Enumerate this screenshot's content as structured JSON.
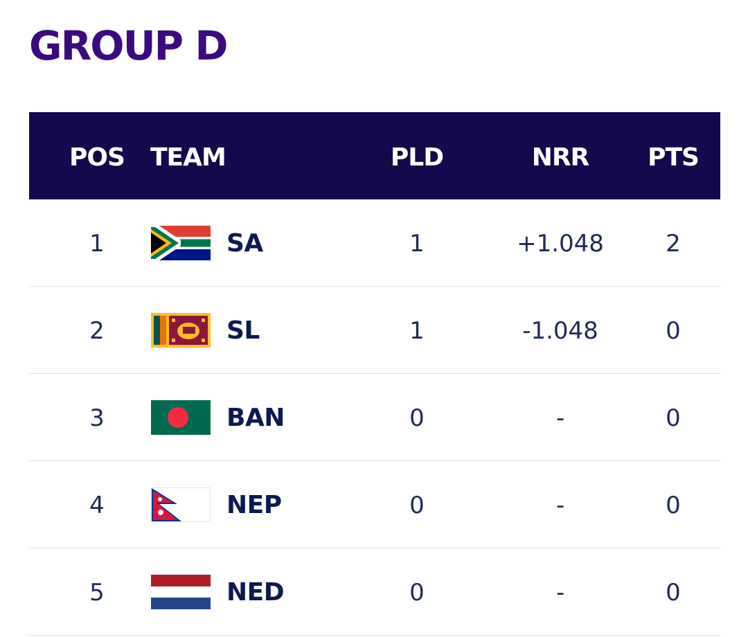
{
  "title": "GROUP D",
  "headers": {
    "pos": "POS",
    "team": "TEAM",
    "pld": "PLD",
    "nrr": "NRR",
    "pts": "PTS"
  },
  "colors": {
    "title": "#3b0a7e",
    "header_bg": "#120a4c",
    "team_text": "#0c1a52"
  },
  "rows": [
    {
      "pos": "1",
      "team": "SA",
      "flag": "south-africa-flag-icon",
      "pld": "1",
      "nrr": "+1.048",
      "pts": "2"
    },
    {
      "pos": "2",
      "team": "SL",
      "flag": "sri-lanka-flag-icon",
      "pld": "1",
      "nrr": "-1.048",
      "pts": "0"
    },
    {
      "pos": "3",
      "team": "BAN",
      "flag": "bangladesh-flag-icon",
      "pld": "0",
      "nrr": "-",
      "pts": "0"
    },
    {
      "pos": "4",
      "team": "NEP",
      "flag": "nepal-flag-icon",
      "pld": "0",
      "nrr": "-",
      "pts": "0"
    },
    {
      "pos": "5",
      "team": "NED",
      "flag": "netherlands-flag-icon",
      "pld": "0",
      "nrr": "-",
      "pts": "0"
    }
  ]
}
